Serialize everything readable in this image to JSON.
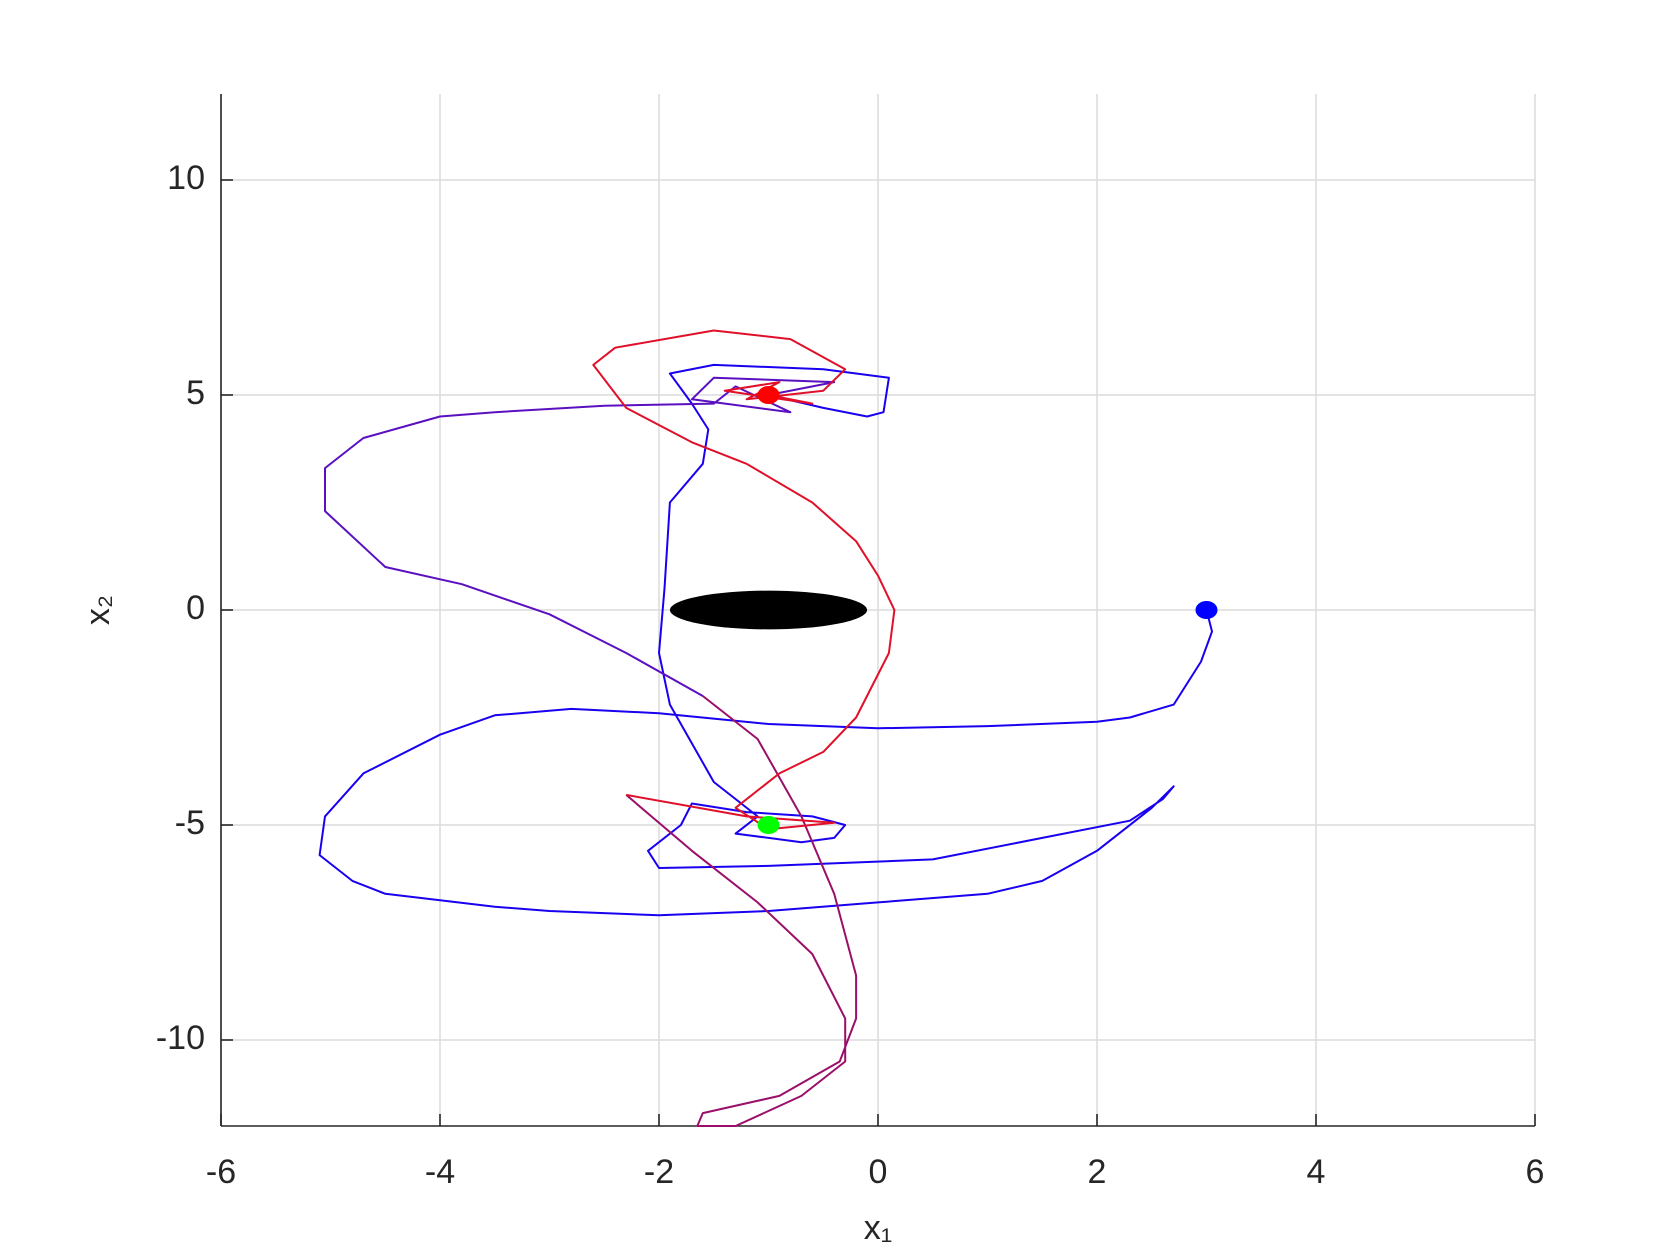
{
  "chart_data": {
    "type": "line",
    "xlabel": "x₁",
    "ylabel": "x₂",
    "xlim": [
      -6,
      6
    ],
    "ylim": [
      -12,
      12
    ],
    "xticks": [
      -6,
      -4,
      -2,
      0,
      2,
      4,
      6
    ],
    "yticks": [
      -10,
      -5,
      0,
      5,
      10
    ],
    "grid": true,
    "series": [
      {
        "color": "#1a00f0",
        "x": [
          3,
          3.05,
          2.95,
          2.7,
          2.3,
          2,
          1,
          0,
          -1,
          -2,
          -2.8,
          -3.5,
          -4,
          -4.7,
          -5.05,
          -5.1,
          -4.8,
          -4.5,
          -3.5,
          -3,
          -2,
          -1,
          0,
          1,
          1.5,
          2,
          2.5,
          2.7,
          2.6,
          2.3,
          1.5,
          0.5,
          -1,
          -2,
          -2.1,
          -1.8,
          -1.7,
          -1.2,
          -0.6,
          -0.3,
          -0.4,
          -0.7,
          -1.3,
          -1.1,
          -1.5,
          -1.9,
          -2,
          -1.95,
          -1.9,
          -1.6,
          -1.55,
          -1.7,
          -1.9,
          -1.5,
          -0.5,
          0.1,
          0.05,
          -0.1,
          -0.5,
          -1
        ],
        "y": [
          0,
          -0.5,
          -1.2,
          -2.2,
          -2.5,
          -2.6,
          -2.7,
          -2.75,
          -2.65,
          -2.4,
          -2.3,
          -2.45,
          -2.9,
          -3.8,
          -4.8,
          -5.7,
          -6.3,
          -6.6,
          -6.9,
          -7.0,
          -7.1,
          -7.0,
          -6.8,
          -6.6,
          -6.3,
          -5.6,
          -4.6,
          -4.1,
          -4.4,
          -4.9,
          -5.3,
          -5.8,
          -5.95,
          -6.0,
          -5.6,
          -5.0,
          -4.5,
          -4.7,
          -4.8,
          -5.0,
          -5.3,
          -5.4,
          -5.2,
          -4.8,
          -4.0,
          -2.2,
          -1,
          0.5,
          2.5,
          3.4,
          4.2,
          4.8,
          5.5,
          5.7,
          5.6,
          5.4,
          4.6,
          4.5,
          4.7,
          5.0
        ]
      },
      {
        "color": "#5a10c0",
        "x": [
          -1,
          -0.4,
          -1.5,
          -1.7,
          -0.8,
          -1.3,
          -1.5,
          -2.5,
          -3.5,
          -4,
          -4.7,
          -5.05,
          -5.05,
          -4.5,
          -3.8,
          -3,
          -2.3,
          -1.6
        ],
        "y": [
          5.0,
          5.3,
          5.4,
          4.9,
          4.6,
          5.2,
          4.8,
          4.75,
          4.6,
          4.5,
          4.0,
          3.3,
          2.3,
          1.0,
          0.6,
          -0.1,
          -1.0,
          -2.0
        ]
      },
      {
        "color": "#9a0f6a",
        "x": [
          -1.6,
          -1.1,
          -0.7,
          -0.4,
          -0.2,
          -0.2,
          -0.35,
          -0.9,
          -1.6,
          -1.65,
          -1.3,
          -0.7,
          -0.3,
          -0.3,
          -0.6,
          -1.1,
          -1.7,
          -2.3
        ],
        "y": [
          -2.0,
          -3.0,
          -4.8,
          -6.6,
          -8.5,
          -9.5,
          -10.5,
          -11.3,
          -11.7,
          -12.0,
          -12.0,
          -11.3,
          -10.5,
          -9.5,
          -8.0,
          -6.8,
          -5.6,
          -4.3
        ]
      },
      {
        "color": "#e0102a",
        "x": [
          -2.3,
          -1.2,
          -0.4,
          -1.0,
          -1.3,
          -0.9,
          -0.5,
          -0.2,
          0.1,
          0.15,
          0.0,
          -0.2,
          -0.6,
          -1.2,
          -1.7,
          -2.3,
          -2.6,
          -2.4,
          -1.5,
          -0.8,
          -0.3,
          -0.5,
          -1.2,
          -0.9,
          -1.4,
          -0.6,
          -1
        ],
        "y": [
          -4.3,
          -4.8,
          -4.95,
          -5.1,
          -4.6,
          -3.8,
          -3.3,
          -2.5,
          -1.0,
          0.0,
          0.8,
          1.6,
          2.5,
          3.4,
          3.9,
          4.7,
          5.7,
          6.1,
          6.5,
          6.3,
          5.6,
          5.1,
          4.9,
          5.3,
          5.1,
          4.8,
          5.0
        ]
      }
    ],
    "markers": [
      {
        "x": 3,
        "y": 0,
        "color": "#0000ff"
      },
      {
        "x": -1,
        "y": -5,
        "color": "#00ff00"
      },
      {
        "x": -1,
        "y": 5,
        "color": "#ff0000"
      }
    ],
    "obstacle": {
      "cx": -1,
      "cy": 0,
      "rx": 0.9,
      "ry": 0.45,
      "color": "#000000"
    }
  }
}
